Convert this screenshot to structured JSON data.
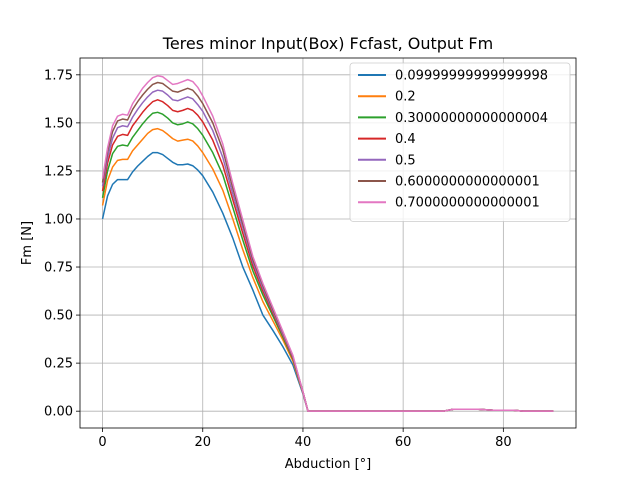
{
  "chart_data": {
    "type": "line",
    "title": "Teres minor Input(Box) Fcfast, Output Fm",
    "xlabel": "Abduction [°]",
    "ylabel": "Fm [N]",
    "xlim": [
      -4.5,
      94.5
    ],
    "ylim": [
      -0.0875,
      1.8375
    ],
    "xticks": [
      0,
      20,
      40,
      60,
      80
    ],
    "yticks": [
      0.0,
      0.25,
      0.5,
      0.75,
      1.0,
      1.25,
      1.5,
      1.75
    ],
    "xtick_labels": [
      "0",
      "20",
      "40",
      "60",
      "80"
    ],
    "ytick_labels": [
      "0.00",
      "0.25",
      "0.50",
      "0.75",
      "1.00",
      "1.25",
      "1.50",
      "1.75"
    ],
    "grid": true,
    "legend_position": "top-right",
    "x": [
      0,
      1,
      2,
      3,
      4,
      5,
      6,
      7,
      8,
      9,
      10,
      11,
      12,
      13,
      14,
      15,
      16,
      17,
      18,
      19,
      20,
      22,
      24,
      26,
      28,
      30,
      32,
      34,
      36,
      38,
      40,
      41,
      45,
      50,
      55,
      60,
      65,
      68,
      70,
      72,
      75,
      78,
      80,
      82,
      84,
      86,
      88,
      90
    ],
    "series": [
      {
        "name": "0.09999999999999998",
        "color": "#1f77b4",
        "values": [
          1.0,
          1.12,
          1.18,
          1.205,
          1.205,
          1.205,
          1.245,
          1.275,
          1.3,
          1.325,
          1.345,
          1.345,
          1.335,
          1.315,
          1.295,
          1.282,
          1.282,
          1.286,
          1.277,
          1.255,
          1.225,
          1.14,
          1.03,
          0.9,
          0.75,
          0.63,
          0.5,
          0.42,
          0.335,
          0.24,
          0.09,
          0.0,
          0.0,
          0.0,
          0.0,
          0.0,
          0.0,
          0.0,
          0.01,
          0.01,
          0.01,
          0.005,
          0.005,
          0.005,
          0.0,
          0.0,
          0.0,
          0.0
        ]
      },
      {
        "name": "0.2",
        "color": "#ff7f0e",
        "values": [
          1.07,
          1.2,
          1.27,
          1.305,
          1.31,
          1.31,
          1.355,
          1.385,
          1.415,
          1.445,
          1.465,
          1.47,
          1.46,
          1.44,
          1.418,
          1.405,
          1.41,
          1.415,
          1.406,
          1.38,
          1.345,
          1.26,
          1.15,
          1.0,
          0.84,
          0.695,
          0.57,
          0.47,
          0.37,
          0.26,
          0.095,
          0.0,
          0.0,
          0.0,
          0.0,
          0.0,
          0.0,
          0.0,
          0.01,
          0.01,
          0.01,
          0.005,
          0.005,
          0.005,
          0.0,
          0.0,
          0.0,
          0.0
        ]
      },
      {
        "name": "0.30000000000000004",
        "color": "#2ca02c",
        "values": [
          1.11,
          1.25,
          1.34,
          1.378,
          1.385,
          1.38,
          1.425,
          1.46,
          1.495,
          1.525,
          1.55,
          1.555,
          1.545,
          1.525,
          1.5,
          1.49,
          1.495,
          1.505,
          1.495,
          1.47,
          1.435,
          1.345,
          1.23,
          1.06,
          0.89,
          0.73,
          0.605,
          0.495,
          0.385,
          0.27,
          0.1,
          0.0,
          0.0,
          0.0,
          0.0,
          0.0,
          0.0,
          0.0,
          0.01,
          0.01,
          0.01,
          0.005,
          0.005,
          0.005,
          0.0,
          0.0,
          0.0,
          0.0
        ]
      },
      {
        "name": "0.4",
        "color": "#d62728",
        "values": [
          1.145,
          1.29,
          1.385,
          1.43,
          1.44,
          1.435,
          1.485,
          1.52,
          1.555,
          1.585,
          1.61,
          1.62,
          1.61,
          1.59,
          1.565,
          1.558,
          1.565,
          1.575,
          1.565,
          1.54,
          1.505,
          1.41,
          1.28,
          1.1,
          0.925,
          0.755,
          0.625,
          0.51,
          0.395,
          0.275,
          0.1,
          0.0,
          0.0,
          0.0,
          0.0,
          0.0,
          0.0,
          0.0,
          0.01,
          0.01,
          0.01,
          0.005,
          0.005,
          0.005,
          0.0,
          0.0,
          0.0,
          0.0
        ]
      },
      {
        "name": "0.5",
        "color": "#9467bd",
        "values": [
          1.17,
          1.32,
          1.42,
          1.475,
          1.485,
          1.48,
          1.53,
          1.57,
          1.605,
          1.635,
          1.66,
          1.67,
          1.665,
          1.645,
          1.62,
          1.615,
          1.625,
          1.635,
          1.625,
          1.595,
          1.56,
          1.46,
          1.32,
          1.13,
          0.955,
          0.775,
          0.64,
          0.52,
          0.4,
          0.28,
          0.1,
          0.0,
          0.0,
          0.0,
          0.0,
          0.0,
          0.0,
          0.0,
          0.01,
          0.01,
          0.01,
          0.005,
          0.005,
          0.005,
          0.0,
          0.0,
          0.0,
          0.0
        ]
      },
      {
        "name": "0.6000000000000001",
        "color": "#8c564b",
        "values": [
          1.19,
          1.35,
          1.455,
          1.51,
          1.52,
          1.515,
          1.57,
          1.61,
          1.645,
          1.675,
          1.7,
          1.71,
          1.705,
          1.685,
          1.665,
          1.66,
          1.67,
          1.68,
          1.67,
          1.64,
          1.6,
          1.5,
          1.36,
          1.16,
          0.975,
          0.79,
          0.655,
          0.53,
          0.41,
          0.285,
          0.1,
          0.0,
          0.0,
          0.0,
          0.0,
          0.0,
          0.0,
          0.0,
          0.01,
          0.01,
          0.01,
          0.005,
          0.005,
          0.005,
          0.0,
          0.0,
          0.0,
          0.0
        ]
      },
      {
        "name": "0.7000000000000001",
        "color": "#e377c2",
        "values": [
          1.21,
          1.37,
          1.485,
          1.535,
          1.545,
          1.54,
          1.6,
          1.64,
          1.68,
          1.71,
          1.735,
          1.745,
          1.74,
          1.72,
          1.7,
          1.705,
          1.715,
          1.725,
          1.715,
          1.685,
          1.64,
          1.535,
          1.39,
          1.185,
          0.995,
          0.805,
          0.665,
          0.54,
          0.415,
          0.29,
          0.1,
          0.0,
          0.0,
          0.0,
          0.0,
          0.0,
          0.0,
          0.0,
          0.01,
          0.01,
          0.01,
          0.005,
          0.005,
          0.005,
          0.0,
          0.0,
          0.0,
          0.0
        ]
      }
    ]
  }
}
